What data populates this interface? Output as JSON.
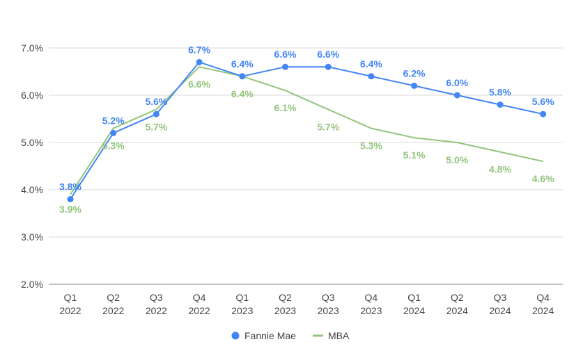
{
  "chart_data": {
    "type": "line",
    "categories": [
      [
        "Q1",
        "2022"
      ],
      [
        "Q2",
        "2022"
      ],
      [
        "Q3",
        "2022"
      ],
      [
        "Q4",
        "2022"
      ],
      [
        "Q1",
        "2023"
      ],
      [
        "Q2",
        "2023"
      ],
      [
        "Q3",
        "2023"
      ],
      [
        "Q4",
        "2023"
      ],
      [
        "Q1",
        "2024"
      ],
      [
        "Q2",
        "2024"
      ],
      [
        "Q3",
        "2024"
      ],
      [
        "Q4",
        "2024"
      ]
    ],
    "y_ticks": [
      "2.0%",
      "3.0%",
      "4.0%",
      "5.0%",
      "6.0%",
      "7.0%"
    ],
    "ylim": [
      2.0,
      7.0
    ],
    "grid": true,
    "legend_position": "bottom",
    "series": [
      {
        "name": "Fannie Mae",
        "color": "#4285f4",
        "marker": "circle",
        "values": [
          3.8,
          5.2,
          5.6,
          6.7,
          6.4,
          6.6,
          6.6,
          6.4,
          6.2,
          6.0,
          5.8,
          5.6
        ],
        "labels": [
          "3.8%",
          "5.2%",
          "5.6%",
          "6.7%",
          "6.4%",
          "6.6%",
          "6.6%",
          "6.4%",
          "6.2%",
          "6.0%",
          "5.8%",
          "5.6%"
        ]
      },
      {
        "name": "MBA",
        "color": "#93c47d",
        "marker": "none",
        "values": [
          3.9,
          5.3,
          5.7,
          6.6,
          6.4,
          6.1,
          5.7,
          5.3,
          5.1,
          5.0,
          4.8,
          4.6
        ],
        "labels": [
          "3.9%",
          "5.3%",
          "5.7%",
          "6.6%",
          "6.4%",
          "6.1%",
          "5.7%",
          "5.3%",
          "5.1%",
          "5.0%",
          "4.8%",
          "4.6%"
        ]
      }
    ]
  }
}
